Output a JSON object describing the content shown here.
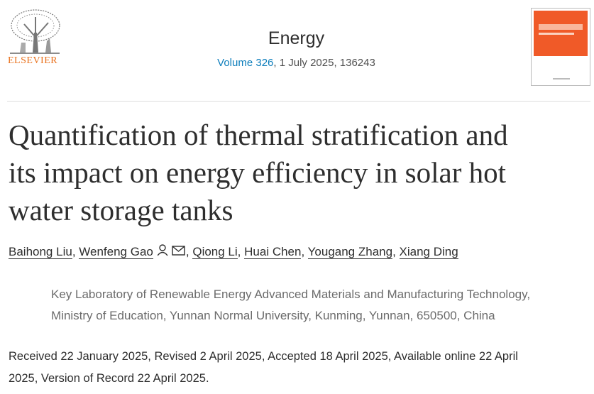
{
  "header": {
    "publisher": "ELSEVIER",
    "journal": "Energy",
    "volume": "Volume 326",
    "issue_info": ", 1 July 2025, 136243"
  },
  "article": {
    "title_lines": [
      "Quantification of thermal stratification and",
      "its impact on energy efficiency in solar hot",
      "water storage tanks"
    ],
    "authors": [
      {
        "name": "Baihong Liu",
        "after": ","
      },
      {
        "name": "Wenfeng Gao",
        "after": ","
      },
      {
        "name": "Qiong Li",
        "after": ","
      },
      {
        "name": "Huai Chen",
        "after": ","
      },
      {
        "name": "Yougang Zhang",
        "after": ","
      },
      {
        "name": "Xiang Ding"
      }
    ],
    "affiliation_lines": [
      "Key Laboratory of Renewable Energy Advanced Materials and Manufacturing Technology,",
      "Ministry of Education, Yunnan Normal University, Kunming, Yunnan, 650500, China"
    ],
    "dates_lines": [
      "Received 22 January 2025, Revised 2 April 2025, Accepted 18 April 2025, Available online 22 April",
      "2025, Version of Record 22 April 2025."
    ]
  }
}
